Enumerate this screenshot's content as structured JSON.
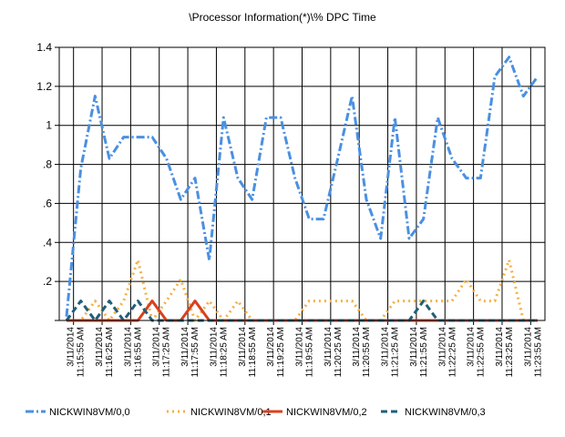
{
  "chart_data": {
    "type": "line",
    "title": "\\Processor Information(*)\\% DPC Time",
    "xlabel": "",
    "ylabel": "",
    "ylim": [
      0,
      1.4
    ],
    "grid": true,
    "legend_position": "bottom",
    "y_ticks": [
      "",
      ".2",
      ".4",
      ".6",
      ".8",
      "1",
      "1.2",
      "1.4"
    ],
    "y_tick_values": [
      0,
      0.2,
      0.4,
      0.6,
      0.8,
      1.0,
      1.2,
      1.4
    ],
    "x_tick_labels": [
      [
        "3/11/2014",
        "11:15:55 AM"
      ],
      [
        "3/11/2014",
        "11:16:25 AM"
      ],
      [
        "3/11/2014",
        "11:16:55 AM"
      ],
      [
        "3/11/2014",
        "11:17:25 AM"
      ],
      [
        "3/11/2014",
        "11:17:55 AM"
      ],
      [
        "3/11/2014",
        "11:18:25 AM"
      ],
      [
        "3/11/2014",
        "11:18:55 AM"
      ],
      [
        "3/11/2014",
        "11:19:25 AM"
      ],
      [
        "3/11/2014",
        "11:19:55 AM"
      ],
      [
        "3/11/2014",
        "11:20:25 AM"
      ],
      [
        "3/11/2014",
        "11:20:55 AM"
      ],
      [
        "3/11/2014",
        "11:21:25 AM"
      ],
      [
        "3/11/2014",
        "11:21:55 AM"
      ],
      [
        "3/11/2014",
        "11:22:25 AM"
      ],
      [
        "3/11/2014",
        "11:22:55 AM"
      ],
      [
        "3/11/2014",
        "11:23:25 AM"
      ],
      [
        "3/11/2014",
        "11:23:55 AM"
      ]
    ],
    "series": [
      {
        "name": "NICKWIN8VM/0,0",
        "color": "#4a90e2",
        "dash": "dashdot",
        "values": [
          0.02,
          0.78,
          1.15,
          0.83,
          0.94,
          0.94,
          0.94,
          0.83,
          0.62,
          0.73,
          0.31,
          1.04,
          0.73,
          0.62,
          1.04,
          1.04,
          0.73,
          0.52,
          0.52,
          0.83,
          1.15,
          0.62,
          0.42,
          1.04,
          0.42,
          0.52,
          1.04,
          0.83,
          0.73,
          0.73,
          1.25,
          1.35,
          1.15,
          1.25
        ]
      },
      {
        "name": "NICKWIN8VM/0,1",
        "color": "#f5b041",
        "dash": "dot",
        "values": [
          0,
          0,
          0.1,
          0,
          0.1,
          0.31,
          0,
          0.1,
          0.21,
          0,
          0.1,
          0,
          0.1,
          0,
          0,
          0,
          0,
          0.1,
          0.1,
          0.1,
          0.1,
          0,
          0,
          0.1,
          0.1,
          0.1,
          0.1,
          0.1,
          0.21,
          0.1,
          0.1,
          0.31,
          0,
          0
        ]
      },
      {
        "name": "NICKWIN8VM/0,2",
        "color": "#d9411e",
        "dash": "solid",
        "values": [
          0,
          0,
          0,
          0,
          0,
          0,
          0.1,
          0,
          0,
          0.1,
          0,
          0,
          0,
          0,
          0,
          0,
          0,
          0,
          0,
          0,
          0,
          0,
          0,
          0,
          0,
          0,
          0,
          0,
          0,
          0,
          0,
          0,
          0,
          0
        ]
      },
      {
        "name": "NICKWIN8VM/0,3",
        "color": "#1f5f7a",
        "dash": "dash",
        "values": [
          0,
          0.1,
          0,
          0.1,
          0,
          0.1,
          0,
          0,
          0,
          0,
          0,
          0,
          0,
          0,
          0,
          0,
          0,
          0,
          0,
          0,
          0,
          0,
          0,
          0,
          0,
          0.1,
          0,
          0,
          0,
          0,
          0,
          0,
          0,
          0
        ]
      }
    ]
  }
}
